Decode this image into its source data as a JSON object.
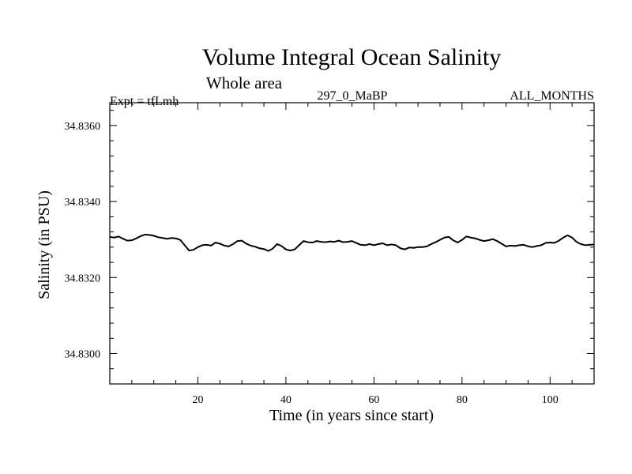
{
  "chart_data": {
    "type": "line",
    "title": "Volume Integral Ocean Salinity",
    "subtitle": "Whole area",
    "label_left": "Expt = tfLmh",
    "label_center": "297_0_MaBP",
    "label_right": "ALL_MONTHS",
    "xlabel": "Time (in years since start)",
    "ylabel": "Salinity (in PSU)",
    "xlim": [
      0,
      110
    ],
    "ylim": [
      34.8292,
      34.8366
    ],
    "x_ticks": [
      20,
      40,
      60,
      80,
      100
    ],
    "x_tick_labels": [
      "20",
      "40",
      "60",
      "80",
      "100"
    ],
    "y_ticks": [
      34.83,
      34.832,
      34.834,
      34.836
    ],
    "y_tick_labels": [
      "34.8300",
      "34.8320",
      "34.8340",
      "34.8360"
    ],
    "grid": false,
    "series": [
      {
        "name": "Salinity",
        "x": [
          0,
          1,
          2,
          3,
          4,
          5,
          6,
          7,
          8,
          9,
          10,
          11,
          12,
          13,
          14,
          15,
          16,
          17,
          18,
          19,
          20,
          21,
          22,
          23,
          24,
          25,
          26,
          27,
          28,
          29,
          30,
          31,
          32,
          33,
          34,
          35,
          36,
          37,
          38,
          39,
          40,
          41,
          42,
          43,
          44,
          45,
          46,
          47,
          48,
          49,
          50,
          51,
          52,
          53,
          54,
          55,
          56,
          57,
          58,
          59,
          60,
          61,
          62,
          63,
          64,
          65,
          66,
          67,
          68,
          69,
          70,
          71,
          72,
          73,
          74,
          75,
          76,
          77,
          78,
          79,
          80,
          81,
          82,
          83,
          84,
          85,
          86,
          87,
          88,
          89,
          90,
          91,
          92,
          93,
          94,
          95,
          96,
          97,
          98,
          99,
          100,
          101,
          102,
          103,
          104,
          105,
          106,
          107,
          108,
          109,
          110
        ],
        "values": [
          34.83307,
          34.83305,
          34.83308,
          34.83302,
          34.83297,
          34.83298,
          34.83303,
          34.83309,
          34.83313,
          34.83312,
          34.8331,
          34.83306,
          34.83304,
          34.83302,
          34.83304,
          34.83303,
          34.83299,
          34.83285,
          34.83271,
          34.83273,
          34.8328,
          34.83285,
          34.83286,
          34.83284,
          34.83292,
          34.83289,
          34.83284,
          34.83282,
          34.83288,
          34.83296,
          34.83297,
          34.83289,
          34.83284,
          34.83281,
          34.83277,
          34.83275,
          34.8327,
          34.83276,
          34.83288,
          34.83283,
          34.83274,
          34.83271,
          34.83274,
          34.83285,
          34.83296,
          34.83293,
          34.83292,
          34.83296,
          34.83294,
          34.83293,
          34.83295,
          34.83294,
          34.83297,
          34.83293,
          34.83294,
          34.83296,
          34.83291,
          34.83286,
          34.83285,
          34.83288,
          34.83285,
          34.83288,
          34.8329,
          34.83285,
          34.83287,
          34.83285,
          34.83277,
          34.83274,
          34.83279,
          34.83278,
          34.8328,
          34.8328,
          34.83282,
          34.83288,
          34.83293,
          34.83299,
          34.83305,
          34.83307,
          34.83298,
          34.83292,
          34.83299,
          34.83308,
          34.83305,
          34.83303,
          34.83299,
          34.83296,
          34.83298,
          34.83301,
          34.83296,
          34.83289,
          34.83282,
          34.83284,
          34.83283,
          34.83285,
          34.83286,
          34.83282,
          34.8328,
          34.83283,
          34.83285,
          34.83291,
          34.83292,
          34.83291,
          34.83297,
          34.83305,
          34.83311,
          34.83305,
          34.83294,
          34.83288,
          34.83285,
          34.83286,
          34.83287
        ]
      }
    ]
  }
}
